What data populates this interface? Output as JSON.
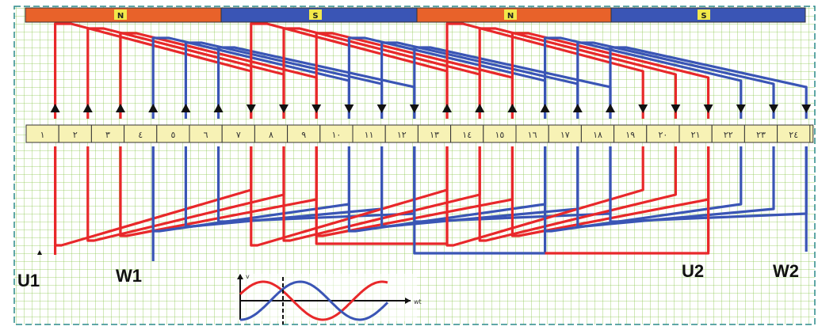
{
  "poles": [
    {
      "label": "N",
      "color": "#e8622a"
    },
    {
      "label": "S",
      "color": "#3a55b5"
    },
    {
      "label": "N",
      "color": "#e8622a"
    },
    {
      "label": "S",
      "color": "#3a55b5"
    }
  ],
  "slots": [
    "١",
    "٢",
    "٣",
    "٤",
    "٥",
    "٦",
    "٧",
    "٨",
    "٩",
    "١٠",
    "١١",
    "١٢",
    "١٣",
    "١٤",
    "١٥",
    "١٦",
    "١٧",
    "١٨",
    "١٩",
    "٢٠",
    "٢١",
    "٢٢",
    "٢٣",
    "٢٤"
  ],
  "slot_colors": [
    "red",
    "red",
    "red",
    "blue",
    "blue",
    "blue",
    "red",
    "red",
    "red",
    "blue",
    "blue",
    "blue",
    "red",
    "red",
    "red",
    "blue",
    "blue",
    "blue",
    "red",
    "red",
    "red",
    "blue",
    "blue",
    "blue"
  ],
  "arrows": [
    "up",
    "up",
    "up",
    "up",
    "up",
    "up",
    "down",
    "down",
    "down",
    "down",
    "down",
    "down",
    "up",
    "up",
    "up",
    "up",
    "up",
    "up",
    "down",
    "down",
    "down",
    "down",
    "down",
    "down"
  ],
  "terminals": {
    "u1": "U1",
    "w1": "W1",
    "u2": "U2",
    "w2": "W2"
  },
  "colors": {
    "phase_u": "#e8282a",
    "phase_w": "#3a55b5",
    "grid": "#8cc850",
    "slot_fill": "#f7f2b5",
    "pole_tag": "#f2e84a"
  },
  "waveform": {
    "y_label": "v",
    "x_label": "wt"
  }
}
